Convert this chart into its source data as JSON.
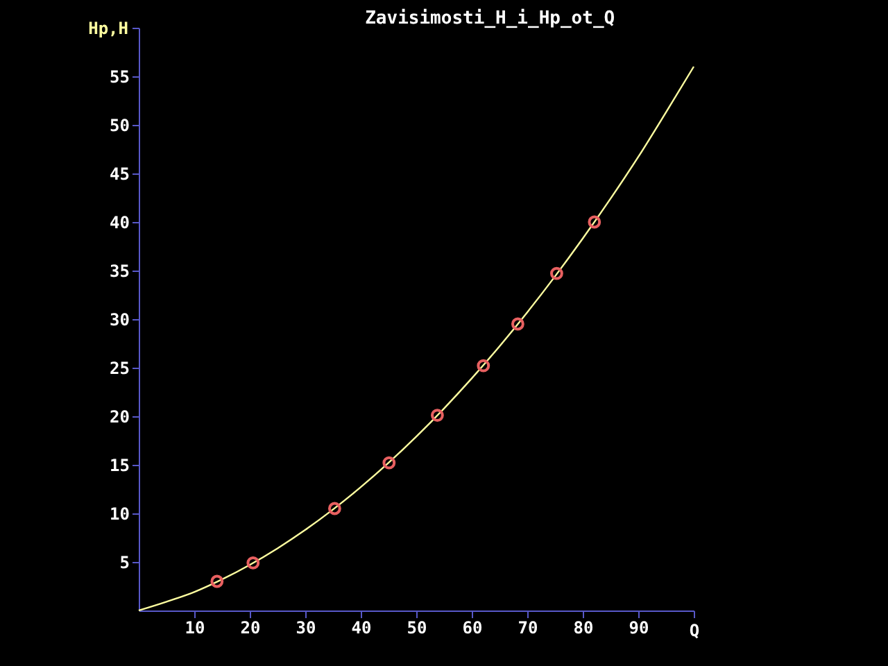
{
  "chart_data": {
    "type": "line",
    "title": "Zavisimosti_H_i_Hp_ot_Q",
    "xlabel": "Q",
    "ylabel": "Hp,H",
    "xlim": [
      0,
      100
    ],
    "ylim": [
      0,
      60
    ],
    "xticks": [
      10,
      20,
      30,
      40,
      50,
      60,
      70,
      80,
      90,
      {
        "value": 100,
        "label": null
      }
    ],
    "yticks": [
      5,
      10,
      15,
      20,
      25,
      30,
      35,
      40,
      45,
      50,
      55,
      {
        "value": 60,
        "label": null
      }
    ],
    "grid": false,
    "line_style": "solid",
    "series": [
      {
        "color": "#ffffa0",
        "x": [
          0,
          5,
          10,
          15,
          20,
          25,
          30,
          35,
          40,
          45,
          50,
          55,
          60,
          65,
          70,
          75,
          80,
          85,
          90,
          95,
          100
        ],
        "values": [
          0,
          0.9,
          1.9,
          3.2,
          4.7,
          6.4,
          8.3,
          10.4,
          12.7,
          15.2,
          17.9,
          20.8,
          23.9,
          27.2,
          30.7,
          34.4,
          38.3,
          42.4,
          46.7,
          51.3,
          56.0
        ]
      },
      {
        "type": "scatter",
        "color": "#e86060",
        "marker": "circle",
        "x": [
          14.1,
          20.6,
          35.3,
          45.1,
          53.8,
          62.1,
          68.3,
          75.3,
          82.1
        ],
        "values": [
          3.0,
          4.9,
          10.5,
          15.2,
          20.1,
          25.2,
          29.5,
          34.7,
          40.0
        ]
      }
    ]
  }
}
